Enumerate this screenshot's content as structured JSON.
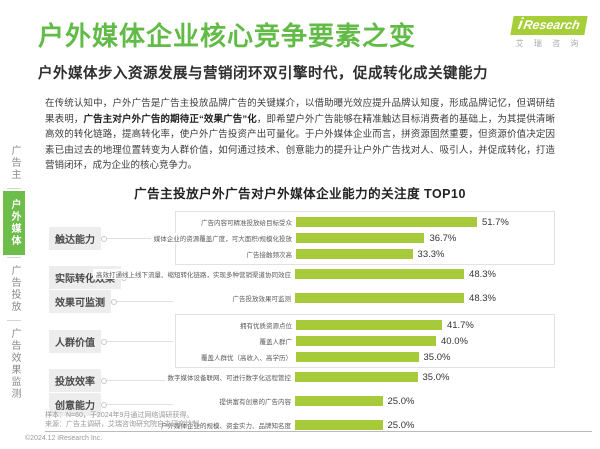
{
  "header": {
    "title": "户外媒体企业核心竞争要素之变",
    "subtitle": "户外媒体步入资源发展与营销闭环双引擎时代，促成转化成关键能力"
  },
  "logo": {
    "i": "i",
    "name": "Research",
    "subtext": "艾 瑞 咨 询"
  },
  "intro": {
    "pre": "在传统认知中，户外广告是广告主投放品牌广告的关键媒介，以借助曝光效应提升品牌认知度，形成品牌记忆，但调研结果表明，",
    "bold": "广告主对户外广告的期待正“效果广告”化",
    "post": "，即希望户外广告能够在精准触达目标消费者的基础上，为其提供清晰高效的转化链路，提高转化率，使户外广告投资产出可量化。于户外媒体企业而言，拼资源固然重要，但资源价值决定因素已由过去的地理位置转变为人群价值，如何通过技术、创意能力的提升让户外广告找对人、吸引人，并促成转化，打造营销闭环，成为企业的核心竞争力。"
  },
  "sidebar": {
    "tabs": [
      {
        "label": "广告主",
        "active": false
      },
      {
        "label": "户外媒体",
        "active": true
      },
      {
        "label": "广告投放",
        "active": false
      },
      {
        "label": "广告效果监测",
        "active": false
      }
    ]
  },
  "chart_data": {
    "type": "bar",
    "title": "广告主投放户外广告对户外媒体企业能力的关注度 TOP10",
    "unit": "%",
    "xlim": [
      0,
      55
    ],
    "bar_color": "#a6ca3a",
    "legend": [],
    "groups": [
      {
        "label": "触达能力",
        "boxed": true,
        "rows": [
          {
            "label": "广告内容可精准投放给目标受众",
            "value": 51.7,
            "display": "51.7%"
          },
          {
            "label": "媒体企业的资源覆盖广度，可大面积/规模化投放",
            "value": 36.7,
            "display": "36.7%"
          },
          {
            "label": "广告接触频次高",
            "value": 33.3,
            "display": "33.3%"
          }
        ]
      },
      {
        "label": "实际转化效果",
        "boxed": false,
        "rows": [
          {
            "label": "高效打通线上线下流量、缩短转化链路，实现多种营销渠道协同效应",
            "value": 48.3,
            "display": "48.3%"
          }
        ]
      },
      {
        "label": "效果可监测",
        "boxed": false,
        "rows": [
          {
            "label": "广告投放效果可监测",
            "value": 48.3,
            "display": "48.3%"
          }
        ]
      },
      {
        "label": "人群价值",
        "boxed": true,
        "rows": [
          {
            "label": "拥有优质资源点位",
            "value": 41.7,
            "display": "41.7%"
          },
          {
            "label": "覆盖人群广",
            "value": 40.0,
            "display": "40.0%"
          },
          {
            "label": "覆盖人群优（高收入、高学历）",
            "value": 35.0,
            "display": "35.0%"
          }
        ]
      },
      {
        "label": "投放效率",
        "boxed": false,
        "rows": [
          {
            "label": "数字媒体设备联网、可进行数字化远程管控",
            "value": 35.0,
            "display": "35.0%"
          }
        ]
      },
      {
        "label": "创意能力",
        "boxed": false,
        "rows": [
          {
            "label": "提供富有创意的广告内容",
            "value": 25.0,
            "display": "25.0%"
          }
        ]
      },
      {
        "label": "",
        "boxed": false,
        "rows": [
          {
            "label": "户外媒体企业的规模、资金实力、品牌知名度",
            "value": 25.0,
            "display": "25.0%"
          }
        ]
      }
    ]
  },
  "footer": {
    "sample": "样本：N=60，于2024年9月通过网络调研获得。",
    "source": "来源：广告主调研，艾瑞咨询研究院自主研究绘制。",
    "copyright": "©2024.12 iResearch Inc."
  }
}
